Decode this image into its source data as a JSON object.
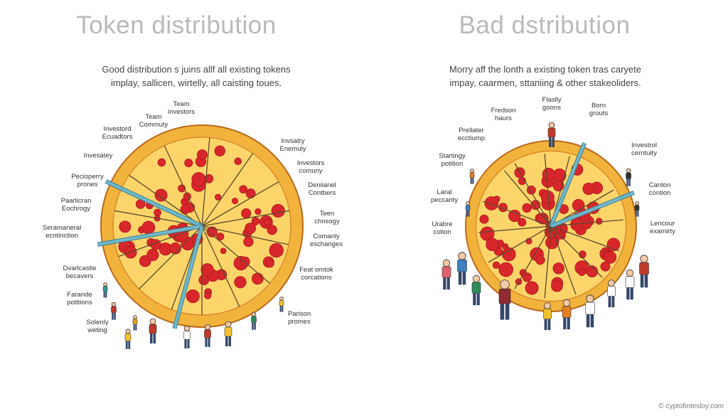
{
  "left": {
    "title": "Token distribution",
    "subtitle": [
      "Good distribution s juins allf all existing tokens",
      "implay, sallicen, wirtelly, all caisting toues."
    ],
    "labels": [
      [
        "Team",
        "investors"
      ],
      [
        "Team",
        "Commuty"
      ],
      [
        "Investord",
        "Ecuadtors"
      ],
      [
        "Invesatey"
      ],
      [
        "Pecioperry",
        "prones"
      ],
      [
        "Paarlicran",
        "Eochrogy"
      ],
      [
        "Seramaneral",
        "ecntinction"
      ],
      [
        "Dvarlcastle",
        "becavers"
      ],
      [
        "Farande",
        "potitions"
      ],
      [
        "Solenly",
        "weting"
      ],
      [
        "Invsatry",
        "Enemuly"
      ],
      [
        "Investors",
        "comuny"
      ],
      [
        "Deniianel",
        "Contbers"
      ],
      [
        "Teen",
        "chnsogy"
      ],
      [
        "Comanly",
        "eschanges"
      ],
      [
        "Feat omtok",
        "corcations"
      ],
      [
        "Parison",
        "promes"
      ]
    ]
  },
  "right": {
    "title": "Bad dstribution",
    "subtitle": [
      "Morry aff the lonth a existing token tras caryete",
      "impay, caarmen, sttaniing & other stakeoliders."
    ],
    "labels": [
      [
        "Flaslly",
        "goons"
      ],
      [
        "Fredson",
        "haurs"
      ],
      [
        "Born",
        "grouts"
      ],
      [
        "Prellater",
        "ecctiump"
      ],
      [
        "Startingy",
        "potition"
      ],
      [
        "Laral",
        "peccanty"
      ],
      [
        "Urabre",
        "cotion"
      ],
      [
        "Investrol",
        "cerntuity"
      ],
      [
        "Canton",
        "contion"
      ],
      [
        "Lencour",
        "examirty"
      ]
    ]
  },
  "watermark": "© cyptofintesloy.com",
  "colors": {
    "crust": "#f2b33d",
    "cheese": "#fbd56a",
    "pepperoni": "#d8262b",
    "knife": "#6fb7c9",
    "title": "#b9b9b9"
  }
}
